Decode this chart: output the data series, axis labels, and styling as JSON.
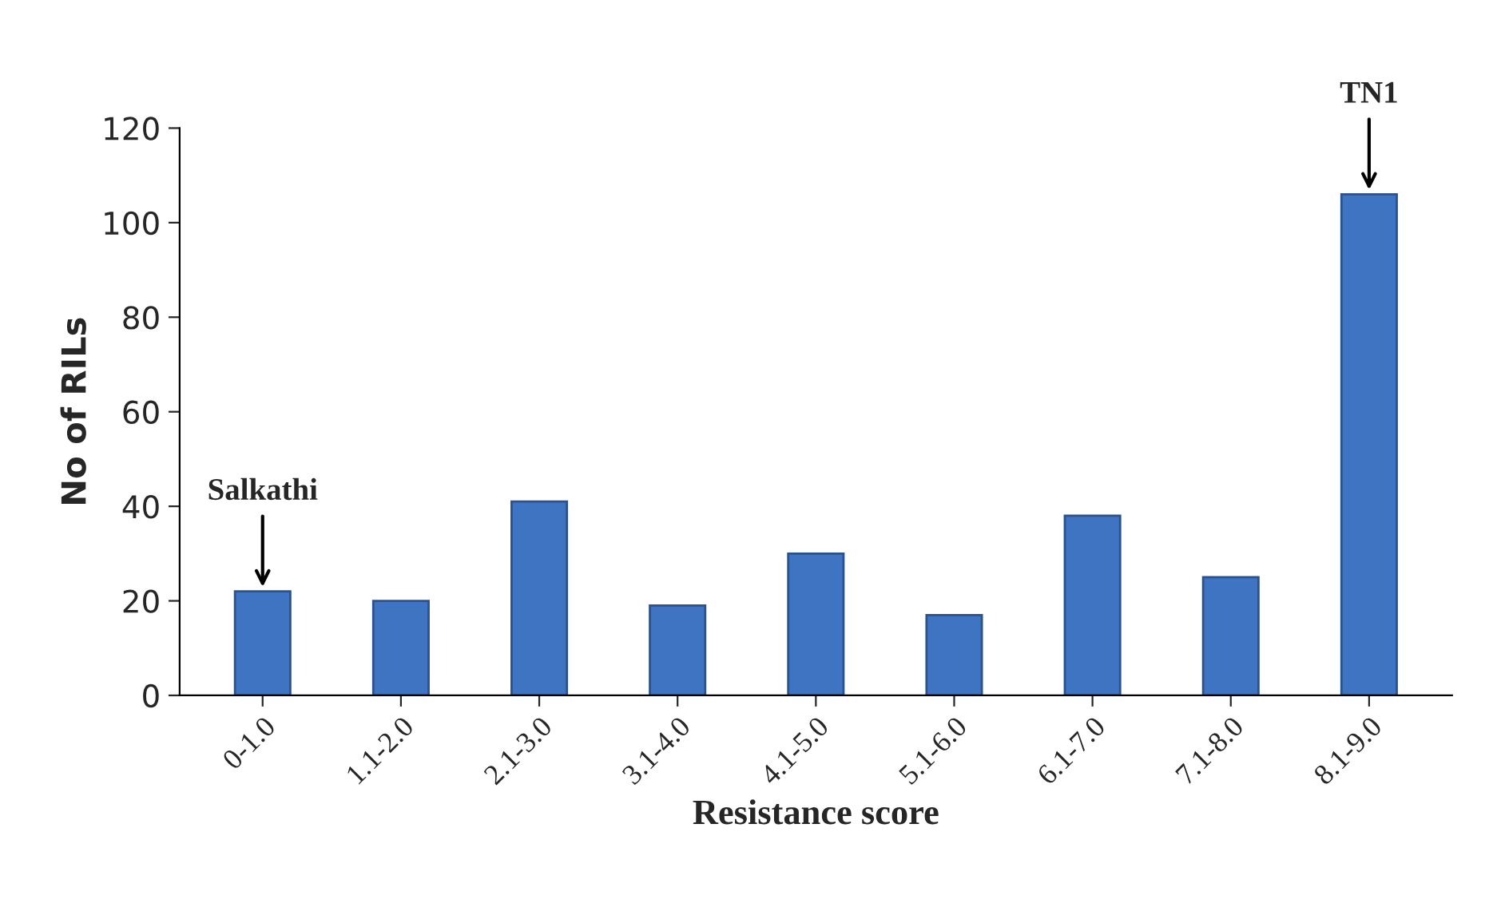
{
  "chart_data": {
    "type": "bar",
    "xlabel": "Resistance score",
    "ylabel": "No of RILs",
    "categories": [
      "0-1.0",
      "1.1-2.0",
      "2.1-3.0",
      "3.1-4.0",
      "4.1-5.0",
      "5.1-6.0",
      "6.1-7.0",
      "7.1-8.0",
      "8.1-9.0"
    ],
    "values": [
      22,
      20,
      41,
      19,
      30,
      17,
      38,
      25,
      106
    ],
    "color": "#3e74c2",
    "ylim": [
      0,
      120
    ],
    "yticks": [
      0,
      20,
      40,
      60,
      80,
      100,
      120
    ],
    "grid": false,
    "annotations": [
      {
        "text": "Salkathi",
        "x": "0-1.0",
        "y": 22
      },
      {
        "text": "TN1",
        "x": "8.1-9.0",
        "y": 106
      }
    ]
  }
}
